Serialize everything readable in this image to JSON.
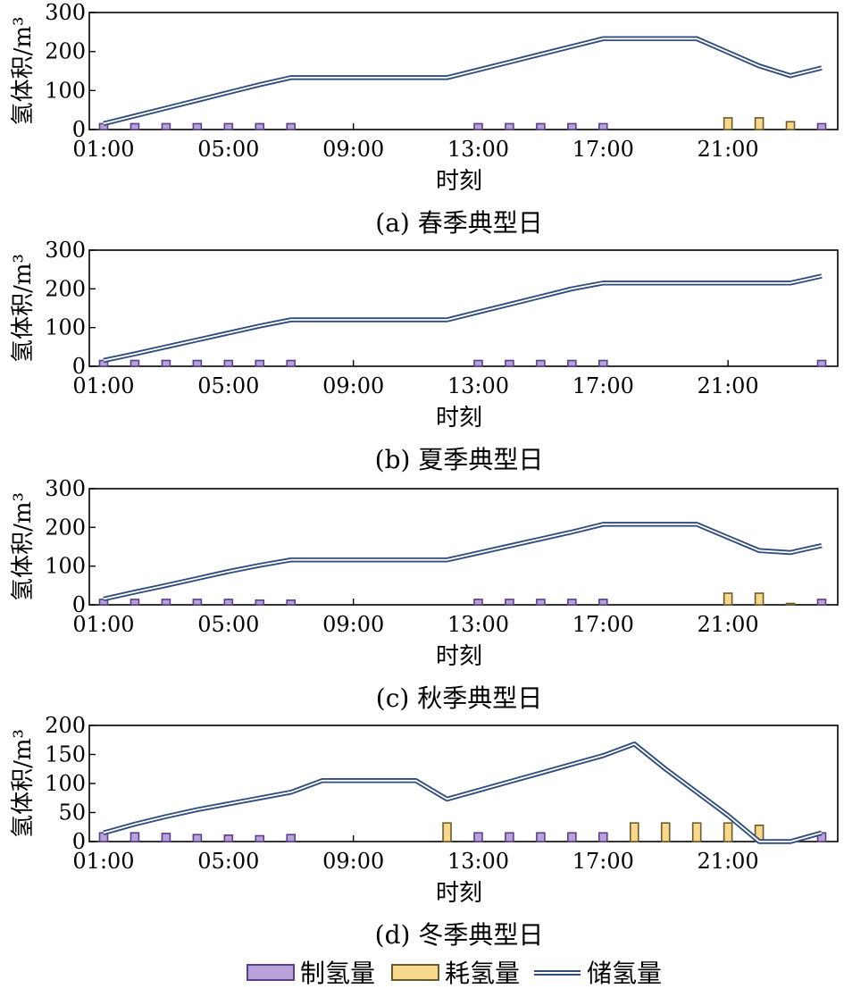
{
  "chart_data": [
    {
      "type": "bar",
      "caption": "(a) 春季典型日",
      "xlabel": "时刻",
      "ylabel": "氢体积/m³",
      "ylim": [
        0,
        300
      ],
      "yticks": [
        0,
        100,
        200,
        300
      ],
      "xticks": [
        "01:00",
        "05:00",
        "09:00",
        "13:00",
        "17:00",
        "21:00"
      ],
      "hours": [
        1,
        2,
        3,
        4,
        5,
        6,
        7,
        8,
        9,
        10,
        11,
        12,
        13,
        14,
        15,
        16,
        17,
        18,
        19,
        20,
        21,
        22,
        23,
        24
      ],
      "series": [
        {
          "name": "制氢量",
          "type": "bar",
          "values": [
            15,
            15,
            15,
            15,
            15,
            15,
            15,
            0,
            0,
            0,
            0,
            0,
            15,
            15,
            15,
            15,
            15,
            0,
            0,
            0,
            0,
            0,
            0,
            15
          ]
        },
        {
          "name": "耗氢量",
          "type": "bar",
          "values": [
            0,
            0,
            0,
            0,
            0,
            0,
            0,
            0,
            0,
            0,
            0,
            0,
            0,
            0,
            0,
            0,
            0,
            0,
            0,
            0,
            30,
            30,
            20,
            0
          ]
        },
        {
          "name": "储氢量",
          "type": "line",
          "values": [
            15,
            35,
            55,
            75,
            95,
            115,
            133,
            133,
            133,
            133,
            133,
            133,
            153,
            173,
            193,
            213,
            233,
            233,
            233,
            233,
            198,
            163,
            138,
            158
          ]
        }
      ]
    },
    {
      "type": "bar",
      "caption": "(b) 夏季典型日",
      "xlabel": "时刻",
      "ylabel": "氢体积/m³",
      "ylim": [
        0,
        300
      ],
      "yticks": [
        0,
        100,
        200,
        300
      ],
      "xticks": [
        "01:00",
        "05:00",
        "09:00",
        "13:00",
        "17:00",
        "21:00"
      ],
      "hours": [
        1,
        2,
        3,
        4,
        5,
        6,
        7,
        8,
        9,
        10,
        11,
        12,
        13,
        14,
        15,
        16,
        17,
        18,
        19,
        20,
        21,
        22,
        23,
        24
      ],
      "series": [
        {
          "name": "制氢量",
          "type": "bar",
          "values": [
            15,
            15,
            15,
            15,
            15,
            15,
            15,
            0,
            0,
            0,
            0,
            0,
            15,
            15,
            15,
            15,
            15,
            0,
            0,
            0,
            0,
            0,
            0,
            15
          ]
        },
        {
          "name": "耗氢量",
          "type": "bar",
          "values": [
            0,
            0,
            0,
            0,
            0,
            0,
            0,
            0,
            0,
            0,
            0,
            0,
            0,
            0,
            0,
            0,
            0,
            0,
            0,
            0,
            0,
            0,
            0,
            0
          ]
        },
        {
          "name": "储氢量",
          "type": "line",
          "values": [
            15,
            32,
            50,
            68,
            86,
            104,
            120,
            120,
            120,
            120,
            120,
            120,
            140,
            160,
            180,
            200,
            215,
            215,
            215,
            215,
            215,
            215,
            215,
            233
          ]
        }
      ]
    },
    {
      "type": "bar",
      "caption": "(c) 秋季典型日",
      "xlabel": "时刻",
      "ylabel": "氢体积/m³",
      "ylim": [
        0,
        300
      ],
      "yticks": [
        0,
        100,
        200,
        300
      ],
      "xticks": [
        "01:00",
        "05:00",
        "09:00",
        "13:00",
        "17:00",
        "21:00"
      ],
      "hours": [
        1,
        2,
        3,
        4,
        5,
        6,
        7,
        8,
        9,
        10,
        11,
        12,
        13,
        14,
        15,
        16,
        17,
        18,
        19,
        20,
        21,
        22,
        23,
        24
      ],
      "series": [
        {
          "name": "制氢量",
          "type": "bar",
          "values": [
            14,
            14,
            14,
            14,
            14,
            12,
            12,
            0,
            0,
            0,
            0,
            0,
            14,
            14,
            14,
            14,
            14,
            0,
            0,
            0,
            0,
            0,
            0,
            14
          ]
        },
        {
          "name": "耗氢量",
          "type": "bar",
          "values": [
            0,
            0,
            0,
            0,
            0,
            0,
            0,
            0,
            0,
            0,
            0,
            0,
            0,
            0,
            0,
            0,
            0,
            0,
            0,
            0,
            30,
            30,
            3,
            0
          ]
        },
        {
          "name": "储氢量",
          "type": "line",
          "values": [
            15,
            33,
            50,
            68,
            86,
            102,
            116,
            116,
            116,
            116,
            116,
            116,
            134,
            152,
            170,
            188,
            208,
            208,
            208,
            208,
            174,
            140,
            135,
            153
          ]
        }
      ]
    },
    {
      "type": "bar",
      "caption": "(d) 冬季典型日",
      "xlabel": "时刻",
      "ylabel": "氢体积/m³",
      "ylim": [
        0,
        200
      ],
      "yticks": [
        0,
        50,
        100,
        150,
        200
      ],
      "xticks": [
        "01:00",
        "05:00",
        "09:00",
        "13:00",
        "17:00",
        "21:00"
      ],
      "hours": [
        1,
        2,
        3,
        4,
        5,
        6,
        7,
        8,
        9,
        10,
        11,
        12,
        13,
        14,
        15,
        16,
        17,
        18,
        19,
        20,
        21,
        22,
        23,
        24
      ],
      "series": [
        {
          "name": "制氢量",
          "type": "bar",
          "values": [
            15,
            15,
            14,
            12,
            11,
            10,
            12,
            0,
            0,
            0,
            0,
            0,
            15,
            15,
            15,
            15,
            15,
            0,
            0,
            0,
            0,
            0,
            0,
            15
          ]
        },
        {
          "name": "耗氢量",
          "type": "bar",
          "values": [
            0,
            0,
            0,
            0,
            0,
            0,
            0,
            0,
            0,
            0,
            0,
            32,
            0,
            0,
            0,
            0,
            0,
            32,
            32,
            32,
            32,
            28,
            0,
            0
          ]
        },
        {
          "name": "储氢量",
          "type": "line",
          "values": [
            15,
            30,
            43,
            55,
            65,
            75,
            85,
            105,
            105,
            105,
            105,
            73,
            88,
            103,
            118,
            133,
            148,
            168,
            125,
            85,
            45,
            0,
            0,
            15
          ]
        }
      ]
    }
  ],
  "legend": {
    "items": [
      {
        "label": "制氢量",
        "kind": "bar",
        "fill": "#b8a2d8",
        "stroke": "#5b3f8f"
      },
      {
        "label": "耗氢量",
        "kind": "bar",
        "fill": "#f7d88c",
        "stroke": "#6b5a2a"
      },
      {
        "label": "储氢量",
        "kind": "line",
        "stroke": "#2f4c7c"
      }
    ]
  },
  "colors": {
    "production_fill": "#b8a2d8",
    "production_stroke": "#5b3f8f",
    "consumption_fill": "#f7d88c",
    "consumption_stroke": "#6b5a2a",
    "storage_line": "#2f4c7c"
  }
}
